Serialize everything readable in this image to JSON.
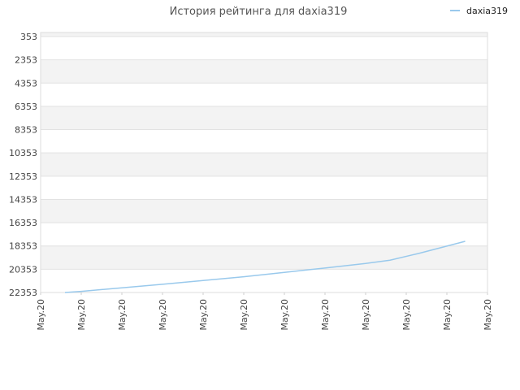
{
  "chart_data": {
    "type": "line",
    "title": "История рейтинга для daxia319",
    "xlabel": "",
    "ylabel": "",
    "legend": "top-right",
    "grid": true,
    "y_inverted": true,
    "ylim": [
      353,
      22353
    ],
    "y_ticks": [
      "353",
      "2353",
      "4353",
      "6353",
      "8353",
      "10353",
      "12353",
      "14353",
      "16353",
      "18353",
      "20353",
      "22353"
    ],
    "x_ticks": [
      "May.20",
      "May.20",
      "May.20",
      "May.20",
      "May.20",
      "May.20",
      "May.20",
      "May.20",
      "May.20",
      "May.20",
      "May.20",
      "May.20"
    ],
    "series_color": "#99c9ec",
    "series": [
      {
        "name": "daxia319",
        "x": [
          0.6,
          1.0,
          2.0,
          3.0,
          4.0,
          5.0,
          6.0,
          7.0,
          8.0,
          8.6,
          9.3,
          10.45
        ],
        "values": [
          22353,
          22253,
          21950,
          21650,
          21320,
          21000,
          20620,
          20250,
          19860,
          19570,
          19000,
          17950
        ]
      }
    ]
  }
}
